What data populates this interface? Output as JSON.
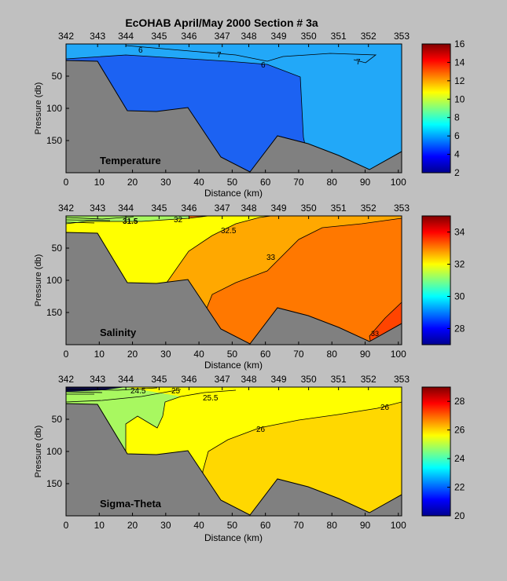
{
  "title": "EcOHAB   April/May 2000   Section # 3a",
  "colors": {
    "background": "#c0c0c0",
    "bottom": "#808080",
    "contour": "#000000"
  },
  "stations": [
    "342",
    "343",
    "344",
    "345",
    "346",
    "347",
    "348",
    "349",
    "350",
    "351",
    "352",
    "353"
  ],
  "x_tick_labels": [
    "0",
    "10",
    "20",
    "30",
    "40",
    "50",
    "60",
    "70",
    "80",
    "90",
    "100"
  ],
  "y_tick_labels": [
    "50",
    "100",
    "150"
  ],
  "xlabel": "Distance (km)",
  "ylabel": "Pressure (db)",
  "chart_data": [
    {
      "type": "heatmap",
      "panel_label": "Temperature",
      "xlabel": "Distance (km)",
      "ylabel": "Pressure (db)",
      "xlim": [
        0,
        101
      ],
      "ylim": [
        200,
        0
      ],
      "station_distances_km": [
        0,
        9.5,
        18,
        28,
        37,
        47,
        55,
        64,
        73,
        82,
        91,
        101
      ],
      "bathymetry": {
        "distance_km": [
          0,
          9.5,
          18,
          28,
          37,
          47,
          55,
          64,
          73,
          82,
          91,
          101
        ],
        "pressure_db": [
          27,
          28,
          104,
          105,
          97,
          172,
          195,
          140,
          152,
          170,
          196,
          165
        ]
      },
      "colorbar": {
        "min": 2,
        "max": 16,
        "ticks": [
          2,
          4,
          6,
          8,
          10,
          12,
          14,
          16
        ]
      },
      "contour_labels": [
        "6",
        "7",
        "6",
        "7"
      ],
      "regions": [
        {
          "level": 6.5,
          "color": "#22a8f8"
        },
        {
          "level": 5.5,
          "color": "#1c62f2"
        }
      ]
    },
    {
      "type": "heatmap",
      "panel_label": "Salinity",
      "xlabel": "Distance (km)",
      "ylabel": "Pressure (db)",
      "xlim": [
        0,
        101
      ],
      "ylim": [
        200,
        0
      ],
      "colorbar": {
        "min": 27,
        "max": 35,
        "ticks": [
          28,
          30,
          32,
          34
        ]
      },
      "contour_labels": [
        "31.5",
        "32",
        "32.5",
        "33",
        "33"
      ],
      "regions": [
        {
          "level": 32.2,
          "color": "#ffff00"
        },
        {
          "level": 32.8,
          "color": "#ffa800"
        },
        {
          "level": 33.2,
          "color": "#ff7800"
        },
        {
          "level": 33.8,
          "color": "#ff4400"
        }
      ]
    },
    {
      "type": "heatmap",
      "panel_label": "Sigma-Theta",
      "xlabel": "Distance (km)",
      "ylabel": "Pressure (db)",
      "xlim": [
        0,
        101
      ],
      "ylim": [
        200,
        0
      ],
      "colorbar": {
        "min": 20,
        "max": 29,
        "ticks": [
          20,
          22,
          24,
          26,
          28
        ]
      },
      "contour_labels": [
        "24.5",
        "25",
        "25.5",
        "26",
        "26"
      ],
      "regions": [
        {
          "level": 25.2,
          "color": "#a8f860"
        },
        {
          "level": 25.8,
          "color": "#ffff00"
        },
        {
          "level": 26.2,
          "color": "#ffd800"
        }
      ]
    }
  ]
}
